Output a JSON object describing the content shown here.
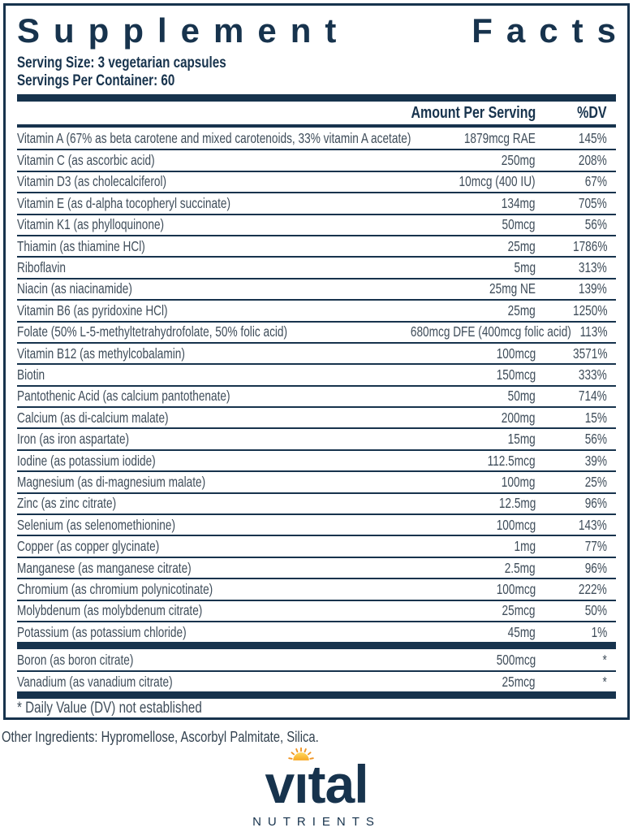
{
  "panel": {
    "title_left": "Supplement",
    "title_right": "Facts",
    "serving_size": "Serving Size: 3 vegetarian capsules",
    "servings_per_container": "Servings Per Container: 60",
    "footnote": "* Daily Value (DV) not established",
    "other_ingredients": "Other Ingredients: Hypromellose, Ascorbyl Palmitate, Silica."
  },
  "table": {
    "amount_header": "Amount Per Serving",
    "dv_header": "%DV",
    "rows": [
      {
        "name": "Vitamin A (67% as beta carotene and mixed carotenoids, 33% vitamin A acetate)",
        "amount": "1879mcg RAE",
        "dv": "145%"
      },
      {
        "name": "Vitamin C (as ascorbic acid)",
        "amount": "250mg",
        "dv": "208%"
      },
      {
        "name": "Vitamin D3 (as cholecalciferol)",
        "amount": "10mcg (400 IU)",
        "dv": "67%"
      },
      {
        "name": "Vitamin E (as d-alpha tocopheryl succinate)",
        "amount": "134mg",
        "dv": "705%"
      },
      {
        "name": "Vitamin K1 (as phylloquinone)",
        "amount": "50mcg",
        "dv": "56%"
      },
      {
        "name": "Thiamin (as thiamine HCl)",
        "amount": "25mg",
        "dv": "1786%"
      },
      {
        "name": "Riboflavin",
        "amount": "5mg",
        "dv": "313%"
      },
      {
        "name": "Niacin (as niacinamide)",
        "amount": "25mg NE",
        "dv": "139%"
      },
      {
        "name": "Vitamin B6 (as pyridoxine HCl)",
        "amount": "25mg",
        "dv": "1250%"
      },
      {
        "name": "Folate (50% L-5-methyltetrahydrofolate, 50% folic acid)",
        "amount": "680mcg DFE (400mcg folic acid)",
        "dv": "113%"
      },
      {
        "name": "Vitamin B12 (as methylcobalamin)",
        "amount": "100mcg",
        "dv": "3571%"
      },
      {
        "name": "Biotin",
        "amount": "150mcg",
        "dv": "333%"
      },
      {
        "name": "Pantothenic Acid (as calcium pantothenate)",
        "amount": "50mg",
        "dv": "714%"
      },
      {
        "name": "Calcium (as di-calcium malate)",
        "amount": "200mg",
        "dv": "15%"
      },
      {
        "name": "Iron (as iron aspartate)",
        "amount": "15mg",
        "dv": "56%"
      },
      {
        "name": "Iodine (as potassium iodide)",
        "amount": "112.5mcg",
        "dv": "39%"
      },
      {
        "name": "Magnesium (as di-magnesium malate)",
        "amount": "100mg",
        "dv": "25%"
      },
      {
        "name": "Zinc (as zinc citrate)",
        "amount": "12.5mg",
        "dv": "96%"
      },
      {
        "name": "Selenium (as selenomethionine)",
        "amount": "100mcg",
        "dv": "143%"
      },
      {
        "name": "Copper (as copper glycinate)",
        "amount": "1mg",
        "dv": "77%"
      },
      {
        "name": "Manganese (as manganese citrate)",
        "amount": "2.5mg",
        "dv": "96%"
      },
      {
        "name": "Chromium (as chromium polynicotinate)",
        "amount": "100mcg",
        "dv": "222%"
      },
      {
        "name": "Molybdenum (as molybdenum citrate)",
        "amount": "25mcg",
        "dv": "50%"
      },
      {
        "name": "Potassium (as potassium chloride)",
        "amount": "45mg",
        "dv": "1%"
      }
    ],
    "non_dv_rows": [
      {
        "name": "Boron (as boron citrate)",
        "amount": "500mcg",
        "dv": "*"
      },
      {
        "name": "Vanadium (as vanadium citrate)",
        "amount": "25mcg",
        "dv": "*"
      }
    ]
  },
  "logo": {
    "word_before_i": "v",
    "i_char": "ı",
    "word_after_i": "tal",
    "subtitle": "NUTRIENTS"
  },
  "colors": {
    "navy": "#17334d",
    "row_text": "#3f4d5a",
    "sun_yellow": "#ffd24a",
    "sun_orange": "#ef9422"
  }
}
